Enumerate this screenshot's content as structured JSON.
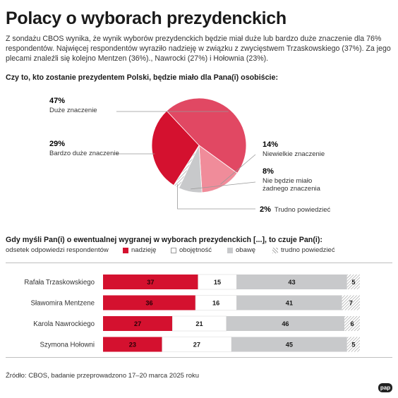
{
  "title": "Polacy o wyborach prezydenckich",
  "intro": "Z sondażu CBOS wynika, że wynik wyborów prezydenckich będzie miał duże lub bardzo duże znaczenie dla 76% respondentów. Najwięcej respondentów wyraziło nadzieję w związku z zwycięstwem Trzaskowskiego (37%). Za jego plecami znaleźli się kolejno Mentzen (36%)., Nawrocki (27%) i Hołownia (23%).",
  "question1": "Czy to, kto zostanie prezydentem Polski, będzie miało dla Pana(i) osobiście:",
  "question2": "Gdy myśli Pan(i) o ewentualnej wygranej w wyborach prezydenckich [...], to czuje Pan(i):",
  "legend_caption": "odsetek odpowiedzi respondentów",
  "source": "Źródło: CBOS, badanie przeprowadzono 17–20 marca 2025 roku",
  "logo": "pap",
  "chart_data": [
    {
      "type": "pie",
      "slices": [
        {
          "label": "Duże znaczenie",
          "value": 47,
          "value_label": "47%",
          "color": "#e14863"
        },
        {
          "label": "Niewielkie znaczenie",
          "value": 14,
          "value_label": "14%",
          "color": "#f08c9a"
        },
        {
          "label": "Nie będzie miało żadnego znaczenia",
          "label_lines": [
            "Nie będzie miało",
            "żadnego znaczenia"
          ],
          "value": 8,
          "value_label": "8%",
          "color": "#c8c9cb"
        },
        {
          "label": "Trudno powiedzieć",
          "value": 2,
          "value_label": "2%",
          "color": "hatch"
        },
        {
          "label": "Bardzo duże znaczenie",
          "value": 29,
          "value_label": "29%",
          "color": "#d4112f"
        }
      ]
    },
    {
      "type": "bar",
      "orientation": "horizontal",
      "stacked": true,
      "categories": [
        "Rafała Trzaskowskiego",
        "Sławomira Mentzene",
        "Karola Nawrockiego",
        "Szymona Hołowni"
      ],
      "series": [
        {
          "name": "nadzieję",
          "color": "#d4112f",
          "values": [
            37,
            36,
            27,
            23
          ]
        },
        {
          "name": "obojętność",
          "color": "#ffffff",
          "values": [
            15,
            16,
            21,
            27
          ]
        },
        {
          "name": "obawę",
          "color": "#c8c9cb",
          "values": [
            43,
            41,
            46,
            45
          ]
        },
        {
          "name": "trudno powiedzieć",
          "color": "hatch",
          "values": [
            5,
            7,
            6,
            5
          ]
        }
      ]
    }
  ]
}
